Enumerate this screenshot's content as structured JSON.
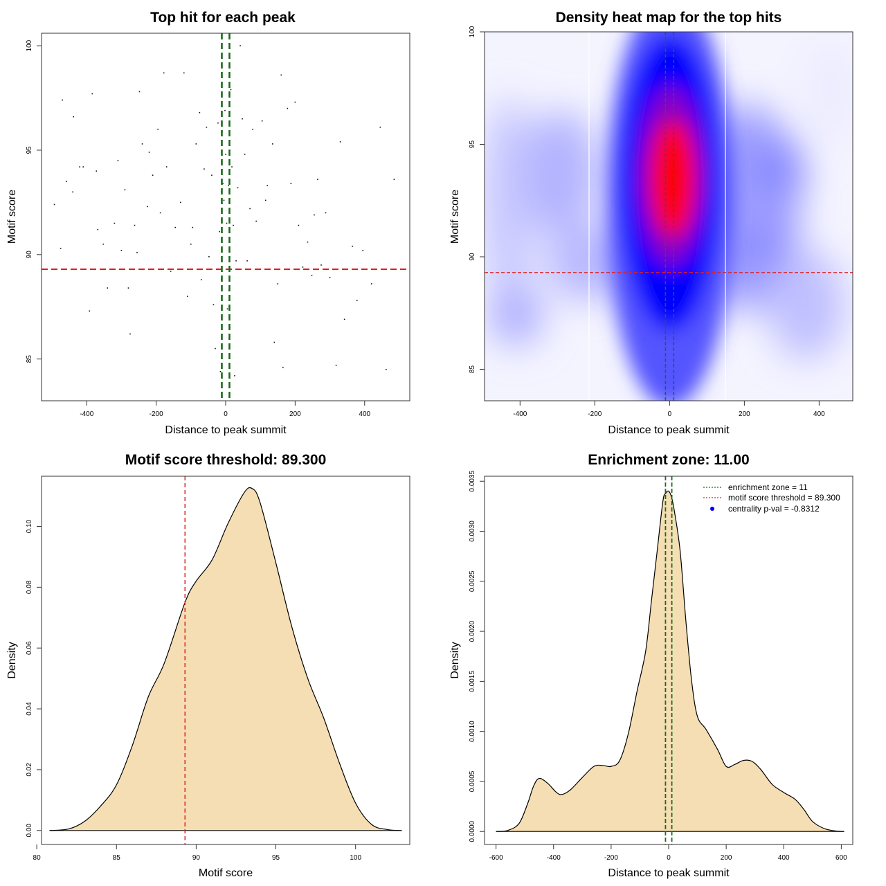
{
  "chart_data": [
    {
      "id": "p1",
      "type": "scatter",
      "title": "Top hit for each peak",
      "xlabel": "Distance to peak summit",
      "ylabel": "Motif score",
      "xlim": [
        -530,
        530
      ],
      "ylim": [
        83.0,
        100.6
      ],
      "xticks": [
        -400,
        -200,
        0,
        200,
        400
      ],
      "yticks": [
        85,
        90,
        95,
        100
      ],
      "threshold_y": 89.3,
      "zone_x": [
        -11,
        11
      ],
      "threshold_color": "#e02020",
      "zone_color": "#1a6b1a",
      "points": [
        [
          -493,
          92.4
        ],
        [
          -475,
          90.3
        ],
        [
          -470,
          97.4
        ],
        [
          -458,
          93.5
        ],
        [
          -438,
          96.6
        ],
        [
          -440,
          93.0
        ],
        [
          -420,
          94.2
        ],
        [
          -410,
          94.2
        ],
        [
          -392,
          87.3
        ],
        [
          -384,
          97.7
        ],
        [
          -372,
          94.0
        ],
        [
          -368,
          91.2
        ],
        [
          -352,
          90.5
        ],
        [
          -340,
          88.4
        ],
        [
          -320,
          91.5
        ],
        [
          -310,
          94.5
        ],
        [
          -300,
          90.2
        ],
        [
          -290,
          93.1
        ],
        [
          -280,
          88.4
        ],
        [
          -275,
          86.2
        ],
        [
          -262,
          91.4
        ],
        [
          -255,
          90.1
        ],
        [
          -248,
          97.8
        ],
        [
          -240,
          95.3
        ],
        [
          -225,
          92.3
        ],
        [
          -220,
          94.9
        ],
        [
          -210,
          93.8
        ],
        [
          -195,
          96.0
        ],
        [
          -188,
          92.0
        ],
        [
          -178,
          98.7
        ],
        [
          -170,
          94.2
        ],
        [
          -158,
          89.2
        ],
        [
          -145,
          91.3
        ],
        [
          -130,
          92.5
        ],
        [
          -120,
          98.7
        ],
        [
          -110,
          88.0
        ],
        [
          -100,
          90.5
        ],
        [
          -95,
          91.3
        ],
        [
          -85,
          95.3
        ],
        [
          -75,
          96.8
        ],
        [
          -70,
          88.8
        ],
        [
          -62,
          94.1
        ],
        [
          -55,
          96.1
        ],
        [
          -48,
          89.9
        ],
        [
          -40,
          93.8
        ],
        [
          -35,
          87.6
        ],
        [
          -30,
          85.5
        ],
        [
          -22,
          96.3
        ],
        [
          -18,
          91.1
        ],
        [
          -15,
          84.4
        ],
        [
          -12,
          88.8
        ],
        [
          -10,
          95.9
        ],
        [
          -8,
          93.4
        ],
        [
          -5,
          92.6
        ],
        [
          -2,
          96.9
        ],
        [
          0,
          94.8
        ],
        [
          3,
          91.5
        ],
        [
          5,
          87.4
        ],
        [
          8,
          93.3
        ],
        [
          10,
          88.3
        ],
        [
          12,
          86.5
        ],
        [
          15,
          97.9
        ],
        [
          18,
          94.2
        ],
        [
          22,
          91.4
        ],
        [
          26,
          84.2
        ],
        [
          30,
          89.7
        ],
        [
          35,
          93.2
        ],
        [
          42,
          100.0
        ],
        [
          48,
          96.5
        ],
        [
          55,
          94.8
        ],
        [
          62,
          89.7
        ],
        [
          70,
          92.2
        ],
        [
          78,
          96.0
        ],
        [
          88,
          91.6
        ],
        [
          95,
          89.3
        ],
        [
          105,
          96.4
        ],
        [
          115,
          92.6
        ],
        [
          120,
          93.3
        ],
        [
          135,
          95.3
        ],
        [
          140,
          85.8
        ],
        [
          150,
          88.6
        ],
        [
          160,
          98.6
        ],
        [
          165,
          84.6
        ],
        [
          178,
          97.0
        ],
        [
          188,
          93.4
        ],
        [
          200,
          97.3
        ],
        [
          210,
          91.4
        ],
        [
          222,
          89.4
        ],
        [
          236,
          90.6
        ],
        [
          248,
          89.0
        ],
        [
          255,
          91.9
        ],
        [
          265,
          93.6
        ],
        [
          275,
          89.5
        ],
        [
          288,
          92.0
        ],
        [
          300,
          88.9
        ],
        [
          318,
          84.7
        ],
        [
          330,
          95.4
        ],
        [
          342,
          86.9
        ],
        [
          365,
          90.4
        ],
        [
          378,
          87.8
        ],
        [
          395,
          90.2
        ],
        [
          420,
          88.6
        ],
        [
          445,
          96.1
        ],
        [
          462,
          84.5
        ],
        [
          485,
          93.6
        ]
      ]
    },
    {
      "id": "p2",
      "type": "heatmap",
      "title": "Density heat map for the top hits",
      "xlabel": "Distance to peak summit",
      "ylabel": "Motif score",
      "xlim": [
        -495,
        490
      ],
      "ylim": [
        83.6,
        100.0
      ],
      "xticks": [
        -400,
        -200,
        0,
        200,
        400
      ],
      "yticks": [
        85,
        90,
        95,
        100
      ],
      "threshold_y": 89.3,
      "zone_x": [
        -11,
        11
      ],
      "threshold_color": "#e02020",
      "zone_color": "#1a6b1a",
      "white_lines_x": [
        -212,
        150
      ],
      "palette": [
        "#ffffff",
        "#0000ff",
        "#ff0000"
      ]
    },
    {
      "id": "p3",
      "type": "area",
      "title": "Motif score threshold: 89.300",
      "xlabel": "Motif score",
      "ylabel": "Density",
      "xlim": [
        80.3,
        103.4
      ],
      "ylim": [
        -0.0046,
        0.1165
      ],
      "xticks": [
        80,
        85,
        90,
        95,
        100
      ],
      "yticks": [
        0.0,
        0.02,
        0.04,
        0.06,
        0.08,
        0.1
      ],
      "ytick_labels": [
        "0.00",
        "0.02",
        "0.04",
        "0.06",
        "0.08",
        "0.10"
      ],
      "threshold_x": 89.3,
      "threshold_color": "#e02020",
      "fill_color": "#f5deb3",
      "x": [
        80.8,
        82.0,
        83.0,
        84.0,
        85.0,
        86.0,
        87.0,
        88.0,
        89.3,
        90.0,
        91.0,
        92.0,
        93.0,
        93.5,
        94.0,
        95.0,
        96.0,
        97.0,
        98.0,
        99.0,
        100.0,
        101.0,
        102.0,
        102.9
      ],
      "y": [
        0.0,
        0.0005,
        0.003,
        0.008,
        0.015,
        0.028,
        0.044,
        0.055,
        0.075,
        0.082,
        0.089,
        0.101,
        0.111,
        0.1125,
        0.108,
        0.088,
        0.067,
        0.05,
        0.037,
        0.022,
        0.009,
        0.002,
        0.0003,
        0.0
      ]
    },
    {
      "id": "p4",
      "type": "area",
      "title": "Enrichment zone: 11.00",
      "xlabel": "Distance to peak summit",
      "ylabel": "Density",
      "xlim": [
        -640,
        640
      ],
      "ylim": [
        -0.00013,
        0.00355
      ],
      "xticks": [
        -600,
        -400,
        -200,
        0,
        200,
        400,
        600
      ],
      "yticks": [
        0.0,
        0.0005,
        0.001,
        0.0015,
        0.002,
        0.0025,
        0.003,
        0.0035
      ],
      "ytick_labels": [
        "0.0000",
        "0.0005",
        "0.0010",
        "0.0015",
        "0.0020",
        "0.0025",
        "0.0030",
        "0.0035"
      ],
      "zone_x": [
        -11,
        11
      ],
      "zone_color": "#1a6b1a",
      "fill_color": "#f5deb3",
      "x": [
        -600,
        -560,
        -520,
        -490,
        -470,
        -450,
        -420,
        -390,
        -370,
        -340,
        -300,
        -260,
        -230,
        -200,
        -170,
        -140,
        -110,
        -80,
        -60,
        -40,
        -20,
        -10,
        0,
        10,
        20,
        40,
        60,
        80,
        100,
        130,
        170,
        200,
        230,
        260,
        290,
        320,
        360,
        400,
        440,
        470,
        500,
        540,
        580,
        610
      ],
      "y": [
        0.0,
        1e-05,
        8e-05,
        0.00028,
        0.00045,
        0.00053,
        0.00048,
        0.00039,
        0.00037,
        0.00042,
        0.00054,
        0.00065,
        0.00066,
        0.00065,
        0.00071,
        0.00098,
        0.0014,
        0.0018,
        0.0023,
        0.0028,
        0.0033,
        0.00338,
        0.0034,
        0.00334,
        0.0032,
        0.0028,
        0.0021,
        0.0015,
        0.00115,
        0.00102,
        0.00082,
        0.00065,
        0.00067,
        0.00071,
        0.0007,
        0.00062,
        0.00047,
        0.00039,
        0.00032,
        0.00022,
        0.0001,
        3e-05,
        5e-06,
        0.0
      ],
      "legend": [
        {
          "label": "enrichment zone = 11",
          "color": "#1a6b1a",
          "kind": "line"
        },
        {
          "label": "motif score threshold = 89.300",
          "color": "#e02020",
          "kind": "line"
        },
        {
          "label": "centrality p-val = -0.8312",
          "color": "#0000ee",
          "kind": "dot"
        }
      ],
      "legend_position": "top-right"
    }
  ]
}
